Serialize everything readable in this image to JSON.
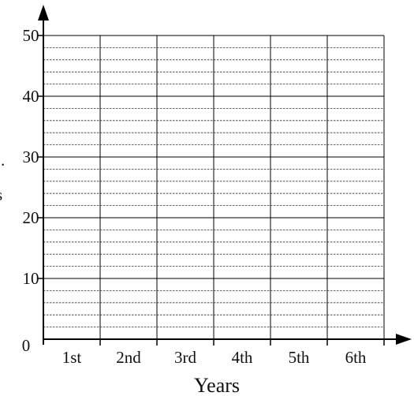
{
  "chart_data": {
    "type": "bar",
    "title": "",
    "xlabel": "Years",
    "ylabel": "",
    "categories": [
      "1st",
      "2nd",
      "3rd",
      "4th",
      "5th",
      "6th"
    ],
    "series": [],
    "ylim": [
      0,
      50
    ],
    "y_major_ticks": [
      "0",
      "10",
      "20",
      "30",
      "40",
      "50"
    ],
    "y_major_step": 10,
    "y_minor_step": 2,
    "grid": true,
    "left_edge_marks": [
      ".",
      "s"
    ]
  }
}
